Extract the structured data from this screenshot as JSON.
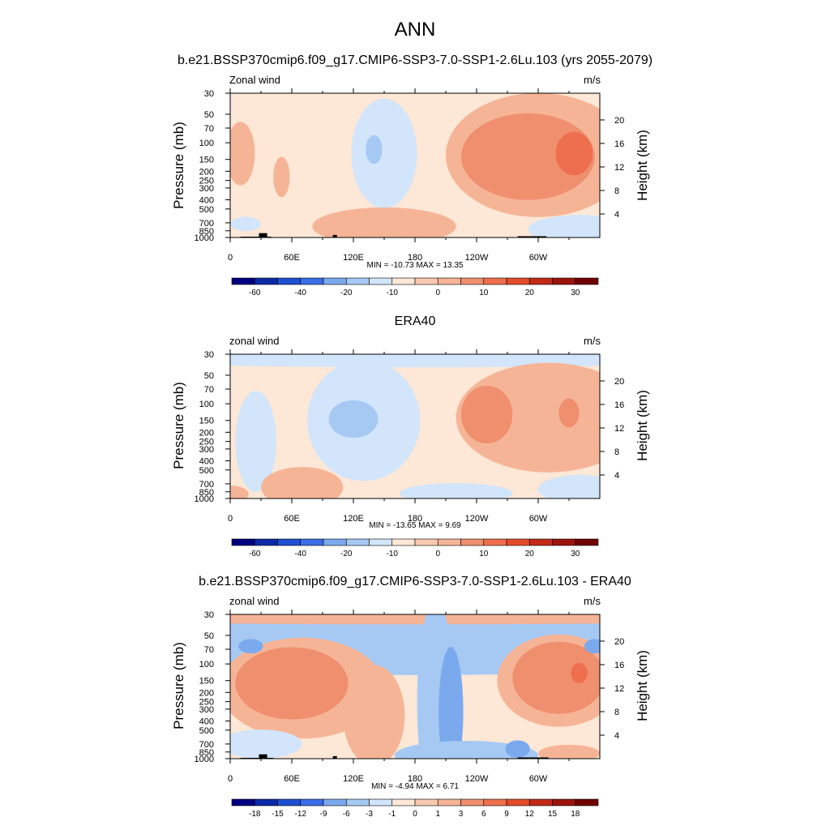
{
  "figure": {
    "title": "ANN"
  },
  "colors": {
    "text": "#000000",
    "land": "#000000"
  },
  "chart_data": [
    {
      "type": "heatmap",
      "subtitle": "b.e21.BSSP370cmip6.f09_g17.CMIP6-SSP3-7.0-SSP1-2.6Lu.103 (yrs 2055-2079)",
      "left_label": "Zonal wind",
      "right_label": "m/s",
      "ylabel": "Pressure (mb)",
      "y2label": "Height (km)",
      "x_ticks": [
        "0",
        "60E",
        "120E",
        "180",
        "120W",
        "60W"
      ],
      "y_ticks": [
        "30",
        "50",
        "70",
        "100",
        "150",
        "200",
        "250",
        "300",
        "400",
        "500",
        "700",
        "850",
        "1000"
      ],
      "y2_ticks": [
        "20",
        "16",
        "12",
        "8",
        "4"
      ],
      "xlim": [
        0,
        360
      ],
      "ylim": [
        1000,
        30
      ],
      "y_scale": "log",
      "stats_text": "MIN = -10.73  MAX =  13.35",
      "stats": {
        "min": -10.73,
        "max": 13.35
      },
      "colorbar_labels": [
        "-60",
        "-40",
        "-20",
        "-10",
        "0",
        "10",
        "20",
        "30"
      ],
      "background": "#fde7d6",
      "features": [
        {
          "lon": 150,
          "p": 130,
          "rx": 32,
          "rd": 0.38,
          "color": "#d2e5fa"
        },
        {
          "lon": 140,
          "p": 118,
          "rx": 8,
          "rd": 0.1,
          "color": "#a6c9f4"
        },
        {
          "lon": 300,
          "p": 135,
          "rx": 90,
          "rd": 0.43,
          "color": "#f6b496"
        },
        {
          "lon": 290,
          "p": 140,
          "rx": 65,
          "rd": 0.3,
          "color": "#ef8f6e"
        },
        {
          "lon": 335,
          "p": 130,
          "rx": 18,
          "rd": 0.15,
          "color": "#ee6f4d"
        },
        {
          "lon": 10,
          "p": 130,
          "rx": 14,
          "rd": 0.22,
          "color": "#f6b496"
        },
        {
          "lon": 50,
          "p": 230,
          "rx": 8,
          "rd": 0.14,
          "color": "#f6b496"
        },
        {
          "lon": 150,
          "p": 760,
          "rx": 70,
          "rd": 0.13,
          "color": "#f6b496"
        },
        {
          "lon": 340,
          "p": 820,
          "rx": 50,
          "rd": 0.1,
          "color": "#d2e5fa"
        },
        {
          "lon": 15,
          "p": 720,
          "rx": 15,
          "rd": 0.05,
          "color": "#d2e5fa"
        }
      ],
      "land_blocks": [
        [
          10,
          40,
          980
        ],
        [
          28,
          36,
          900
        ],
        [
          100,
          104,
          940
        ],
        [
          280,
          308,
          970
        ]
      ]
    },
    {
      "type": "heatmap",
      "subtitle": "ERA40",
      "left_label": "zonal wind",
      "right_label": "m/s",
      "ylabel": "Pressure (mb)",
      "y2label": "Height (km)",
      "x_ticks": [
        "0",
        "60E",
        "120E",
        "180",
        "120W",
        "60W"
      ],
      "y_ticks": [
        "30",
        "50",
        "70",
        "100",
        "150",
        "200",
        "250",
        "300",
        "400",
        "500",
        "700",
        "850",
        "1000"
      ],
      "y2_ticks": [
        "20",
        "16",
        "12",
        "8",
        "4"
      ],
      "xlim": [
        0,
        360
      ],
      "ylim": [
        1000,
        30
      ],
      "y_scale": "log",
      "stats_text": "MIN = -13.65  MAX =   9.69",
      "stats": {
        "min": -13.65,
        "max": 9.69
      },
      "colorbar_labels": [
        "-60",
        "-40",
        "-20",
        "-10",
        "0",
        "10",
        "20",
        "30"
      ],
      "background": "#fde7d6",
      "features": [
        {
          "lon": 180,
          "p": 30,
          "rx": 400,
          "rd": 0.09,
          "color": "#d2e5fa"
        },
        {
          "lon": 130,
          "p": 150,
          "rx": 55,
          "rd": 0.42,
          "color": "#d2e5fa"
        },
        {
          "lon": 120,
          "p": 145,
          "rx": 24,
          "rd": 0.13,
          "color": "#a6c9f4"
        },
        {
          "lon": 25,
          "p": 250,
          "rx": 20,
          "rd": 0.35,
          "color": "#d2e5fa"
        },
        {
          "lon": 310,
          "p": 140,
          "rx": 90,
          "rd": 0.38,
          "color": "#f6b496"
        },
        {
          "lon": 250,
          "p": 130,
          "rx": 25,
          "rd": 0.2,
          "color": "#ef8f6e"
        },
        {
          "lon": 330,
          "p": 125,
          "rx": 10,
          "rd": 0.1,
          "color": "#ef8f6e"
        },
        {
          "lon": 70,
          "p": 760,
          "rx": 40,
          "rd": 0.14,
          "color": "#f6b496"
        },
        {
          "lon": 220,
          "p": 880,
          "rx": 55,
          "rd": 0.07,
          "color": "#d2e5fa"
        },
        {
          "lon": 340,
          "p": 800,
          "rx": 40,
          "rd": 0.1,
          "color": "#d2e5fa"
        },
        {
          "lon": 0,
          "p": 900,
          "rx": 18,
          "rd": 0.06,
          "color": "#f6b496"
        }
      ],
      "land_blocks": []
    },
    {
      "type": "heatmap",
      "subtitle": "b.e21.BSSP370cmip6.f09_g17.CMIP6-SSP3-7.0-SSP1-2.6Lu.103 - ERA40",
      "left_label": "zonal wind",
      "right_label": "m/s",
      "ylabel": "Pressure (mb)",
      "y2label": "Height (km)",
      "x_ticks": [
        "0",
        "60E",
        "120E",
        "180",
        "120W",
        "60W"
      ],
      "y_ticks": [
        "30",
        "50",
        "70",
        "100",
        "150",
        "200",
        "250",
        "300",
        "400",
        "500",
        "700",
        "850",
        "1000"
      ],
      "y2_ticks": [
        "20",
        "16",
        "12",
        "8",
        "4"
      ],
      "xlim": [
        0,
        360
      ],
      "ylim": [
        1000,
        30
      ],
      "y_scale": "log",
      "stats_text": "MIN =  -4.94  MAX =   6.71",
      "stats": {
        "min": -4.94,
        "max": 6.71
      },
      "colorbar_labels": [
        "-18",
        "-15",
        "-12",
        "-9",
        "-6",
        "-3",
        "-1",
        "0",
        "1",
        "3",
        "6",
        "9",
        "12",
        "15",
        "18"
      ],
      "background": "#fde7d6",
      "features": [
        {
          "lon": 180,
          "p": 65,
          "rx": 400,
          "rd": 0.2,
          "color": "#a6c9f4"
        },
        {
          "lon": 180,
          "p": 31,
          "rx": 400,
          "rd": 0.06,
          "color": "#f6b496"
        },
        {
          "lon": 200,
          "p": 250,
          "rx": 18,
          "rd": 0.7,
          "color": "#a6c9f4"
        },
        {
          "lon": 215,
          "p": 320,
          "rx": 12,
          "rd": 0.45,
          "color": "#7ba9ed"
        },
        {
          "lon": 70,
          "p": 180,
          "rx": 80,
          "rd": 0.35,
          "color": "#f6b496"
        },
        {
          "lon": 60,
          "p": 160,
          "rx": 55,
          "rd": 0.25,
          "color": "#ef8f6e"
        },
        {
          "lon": 140,
          "p": 350,
          "rx": 30,
          "rd": 0.35,
          "color": "#f6b496"
        },
        {
          "lon": 320,
          "p": 150,
          "rx": 60,
          "rd": 0.32,
          "color": "#f6b496"
        },
        {
          "lon": 320,
          "p": 140,
          "rx": 45,
          "rd": 0.25,
          "color": "#ef8f6e"
        },
        {
          "lon": 340,
          "p": 125,
          "rx": 8,
          "rd": 0.07,
          "color": "#ee6f4d"
        },
        {
          "lon": 20,
          "p": 65,
          "rx": 12,
          "rd": 0.05,
          "color": "#7ba9ed"
        },
        {
          "lon": 355,
          "p": 65,
          "rx": 10,
          "rd": 0.05,
          "color": "#7ba9ed"
        },
        {
          "lon": 230,
          "p": 920,
          "rx": 70,
          "rd": 0.1,
          "color": "#a6c9f4"
        },
        {
          "lon": 280,
          "p": 790,
          "rx": 12,
          "rd": 0.06,
          "color": "#7ba9ed"
        },
        {
          "lon": 30,
          "p": 700,
          "rx": 40,
          "rd": 0.1,
          "color": "#d2e5fa"
        },
        {
          "lon": 330,
          "p": 880,
          "rx": 30,
          "rd": 0.06,
          "color": "#f6b496"
        }
      ],
      "land_blocks": [
        [
          10,
          42,
          980
        ],
        [
          28,
          36,
          900
        ],
        [
          100,
          104,
          940
        ],
        [
          280,
          310,
          970
        ]
      ]
    }
  ],
  "colorbar_colors": [
    "#00007e",
    "#0c2aa6",
    "#1d4fd1",
    "#3a6de6",
    "#7ba9ed",
    "#a6c9f4",
    "#d2e5fa",
    "#fde7d6",
    "#f8c9b0",
    "#f6b496",
    "#ef8f6e",
    "#ee6f4d",
    "#e34b2a",
    "#c22a17",
    "#9b140b",
    "#700000"
  ]
}
